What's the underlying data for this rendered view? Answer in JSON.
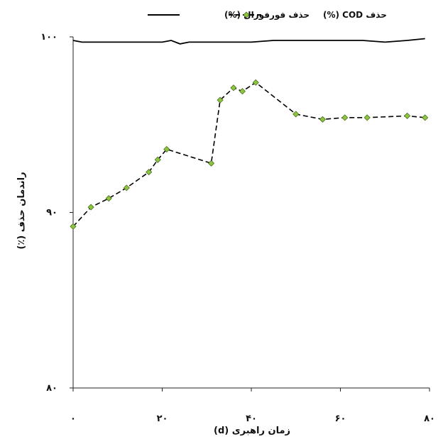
{
  "chart_data": {
    "type": "line",
    "xlabel": "زمان راهبری (d)",
    "ylabel": "راندمان حذف (٪)",
    "xlim": [
      0,
      80
    ],
    "ylim": [
      80,
      100
    ],
    "x_ticks": [
      "۰",
      "۲۰",
      "۴۰",
      "۶۰",
      "۸۰"
    ],
    "y_ticks": [
      "۸۰",
      "۹۰",
      "۱۰۰"
    ],
    "legend_position": "top",
    "series": [
      {
        "name": "حذف فورفورال (%)",
        "color": "#000000",
        "style": "solid",
        "marker": "none",
        "x": [
          0,
          2,
          5,
          10,
          15,
          18,
          20,
          22,
          24,
          26,
          30,
          35,
          40,
          45,
          50,
          55,
          60,
          65,
          70,
          75,
          79
        ],
        "y": [
          99.8,
          99.7,
          99.7,
          99.7,
          99.7,
          99.7,
          99.7,
          99.8,
          99.6,
          99.7,
          99.7,
          99.7,
          99.7,
          99.8,
          99.8,
          99.8,
          99.8,
          99.8,
          99.7,
          99.8,
          99.9
        ]
      },
      {
        "name": "حذف COD (%)",
        "color": "#000000",
        "marker_color": "#8cc63f",
        "style": "dashed",
        "marker": "diamond",
        "x": [
          0,
          4,
          8,
          12,
          17,
          19,
          21,
          31,
          33,
          36,
          38,
          41,
          50,
          56,
          61,
          66,
          75,
          79
        ],
        "y": [
          89.2,
          90.3,
          90.8,
          91.4,
          92.3,
          93.0,
          93.6,
          92.8,
          96.4,
          97.1,
          96.9,
          97.4,
          95.6,
          95.3,
          95.4,
          95.4,
          95.5,
          95.4
        ]
      }
    ]
  }
}
